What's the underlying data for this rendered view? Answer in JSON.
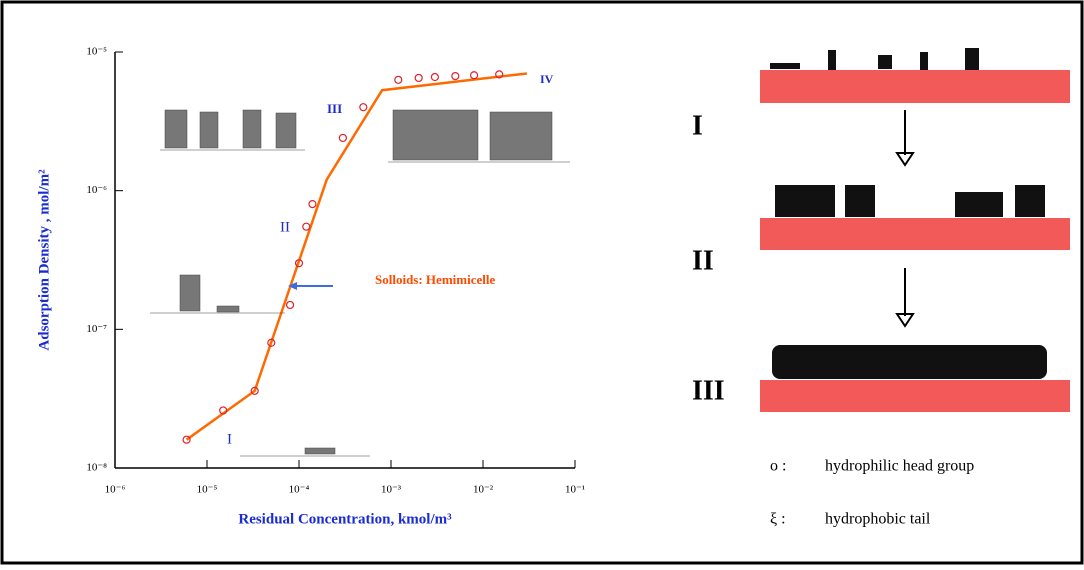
{
  "chart_data": {
    "type": "line",
    "log_x": true,
    "log_y": true,
    "xlabel": "Residual Concentration, kmol/m³",
    "ylabel": "Adsorption Density , mol/m²",
    "xlim": [
      1e-06,
      0.1
    ],
    "ylim": [
      1e-08,
      1e-05
    ],
    "xticks": [
      {
        "value": 1e-06,
        "label": "10⁻⁶"
      },
      {
        "value": 1e-05,
        "label": "10⁻⁵"
      },
      {
        "value": 0.0001,
        "label": "10⁻⁴"
      },
      {
        "value": 0.001,
        "label": "10⁻³"
      },
      {
        "value": 0.01,
        "label": "10⁻²"
      },
      {
        "value": 0.1,
        "label": "10⁻¹"
      }
    ],
    "yticks": [
      {
        "value": 1e-08,
        "label": "10⁻⁸"
      },
      {
        "value": 1e-07,
        "label": "10⁻⁷"
      },
      {
        "value": 1e-06,
        "label": "10⁻⁶"
      },
      {
        "value": 1e-05,
        "label": "10⁻⁵"
      }
    ],
    "series": [
      {
        "color": "#ff6a00",
        "style": "line",
        "x": [
          6e-06,
          3.3e-05,
          0.0002,
          0.0008,
          0.03
        ],
        "values": [
          1.6e-08,
          3.6e-08,
          1.2e-06,
          5.3e-06,
          7e-06
        ]
      },
      {
        "color": "#e0202a",
        "style": "marker",
        "x": [
          6e-06,
          1.5e-05,
          3.3e-05,
          5e-05,
          8e-05,
          0.0001,
          0.00012,
          0.00014,
          0.0003,
          0.0005,
          0.0012,
          0.002,
          0.003,
          0.005,
          0.008,
          0.015
        ],
        "values": [
          1.6e-08,
          2.6e-08,
          3.6e-08,
          8e-08,
          1.5e-07,
          3e-07,
          5.5e-07,
          8e-07,
          2.4e-06,
          4e-06,
          6.3e-06,
          6.5e-06,
          6.6e-06,
          6.7e-06,
          6.8e-06,
          6.9e-06
        ]
      }
    ],
    "annotations": [
      "I",
      "II",
      "III",
      "IV",
      "Solloids: Hemimicelle"
    ]
  },
  "diagram": {
    "stages": [
      "I",
      "II",
      "III"
    ],
    "legend": [
      {
        "symbol": "o :",
        "text": "hydrophilic head group"
      },
      {
        "symbol": "ξ :",
        "text": "hydrophobic tail"
      }
    ]
  }
}
